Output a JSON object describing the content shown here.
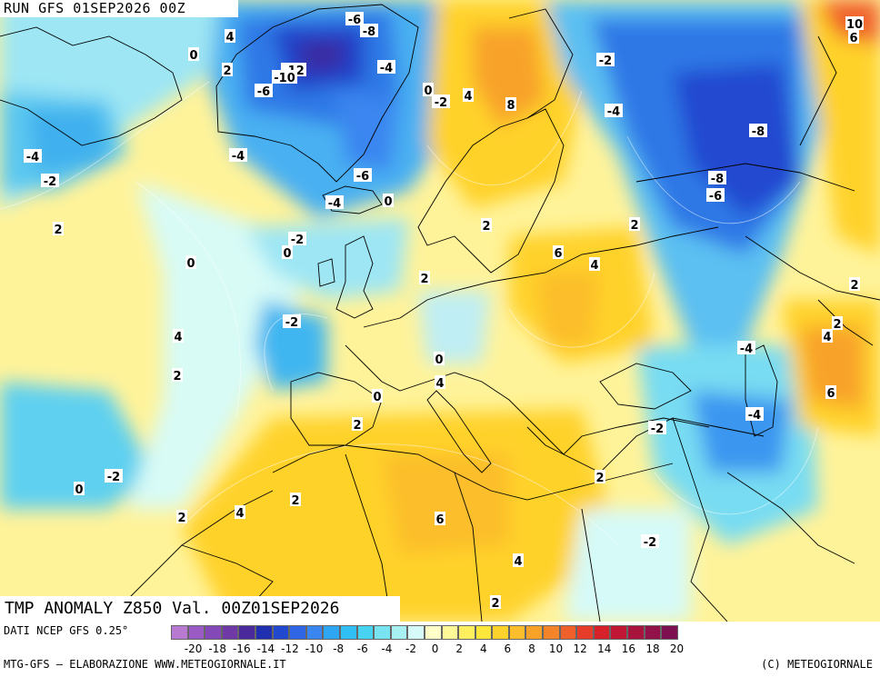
{
  "header": {
    "run_label": "RUN GFS 01SEP2026 00Z"
  },
  "map_title": "TMP ANOMALY Z850 Val. 00Z01SEP2026",
  "footer": {
    "data_source": "DATI NCEP GFS 0.25°",
    "producer": "MTG-GFS – ELABORAZIONE WWW.METEOGIORNALE.IT",
    "copyright": "(C) METEOGIORNALE"
  },
  "legend": {
    "colors": [
      "#b77ad0",
      "#9a5cc4",
      "#8448b8",
      "#6f3aa8",
      "#4a2a9a",
      "#1f2fb0",
      "#2248d0",
      "#2f66e6",
      "#3a86f0",
      "#2ea6f2",
      "#32c0f4",
      "#46d4f2",
      "#78e4f2",
      "#a8f0f2",
      "#d6faf8",
      "#fffec8",
      "#fff898",
      "#fff060",
      "#ffe63a",
      "#ffd22c",
      "#fcbe2c",
      "#f8a22a",
      "#f4842a",
      "#f0602a",
      "#e83c2a",
      "#d6202a",
      "#c01834",
      "#a8143e",
      "#92124a",
      "#7c1050"
    ],
    "tick_labels": [
      "-20",
      "-18",
      "-16",
      "-14",
      "-12",
      "-10",
      "-8",
      "-6",
      "-4",
      "-2",
      "0",
      "2",
      "4",
      "6",
      "8",
      "10",
      "12",
      "14",
      "16",
      "18",
      "20"
    ]
  },
  "contour_labels": [
    {
      "text": "4"
    },
    {
      "text": "0"
    },
    {
      "text": "2"
    },
    {
      "text": "-6"
    },
    {
      "text": "-8"
    },
    {
      "text": "-12"
    },
    {
      "text": "-10"
    },
    {
      "text": "-6"
    },
    {
      "text": "-4"
    },
    {
      "text": "0"
    },
    {
      "text": "-2"
    },
    {
      "text": "4"
    },
    {
      "text": "8"
    },
    {
      "text": "-2"
    },
    {
      "text": "-4"
    },
    {
      "text": "-8"
    },
    {
      "text": "-8"
    },
    {
      "text": "-6"
    },
    {
      "text": "-6"
    },
    {
      "text": "10"
    },
    {
      "text": "6"
    },
    {
      "text": "-4"
    },
    {
      "text": "-2"
    },
    {
      "text": "-4"
    },
    {
      "text": "-4"
    },
    {
      "text": "0"
    },
    {
      "text": "2"
    },
    {
      "text": "-2"
    },
    {
      "text": "0"
    },
    {
      "text": "0"
    },
    {
      "text": "2"
    },
    {
      "text": "6"
    },
    {
      "text": "4"
    },
    {
      "text": "2"
    },
    {
      "text": "2"
    },
    {
      "text": "4"
    },
    {
      "text": "-2"
    },
    {
      "text": "2"
    },
    {
      "text": "0"
    },
    {
      "text": "4"
    },
    {
      "text": "0"
    },
    {
      "text": "-4"
    },
    {
      "text": "-4"
    },
    {
      "text": "6"
    },
    {
      "text": "2"
    },
    {
      "text": "-2"
    },
    {
      "text": "2"
    },
    {
      "text": "-2"
    },
    {
      "text": "0"
    },
    {
      "text": "2"
    },
    {
      "text": "4"
    },
    {
      "text": "2"
    },
    {
      "text": "6"
    },
    {
      "text": "-2"
    },
    {
      "text": "4"
    },
    {
      "text": "2"
    },
    {
      "text": "2"
    },
    {
      "text": "4"
    },
    {
      "text": "2"
    }
  ]
}
